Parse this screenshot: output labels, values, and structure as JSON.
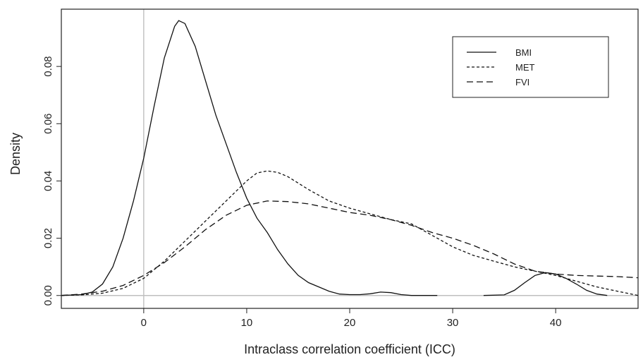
{
  "chart_data": {
    "type": "line",
    "title": "",
    "xlabel": "Intraclass correlation coefficient (ICC)",
    "ylabel": "Density",
    "xlim": [
      -8,
      48
    ],
    "ylim": [
      -0.0045,
      0.1
    ],
    "xticks": [
      0,
      10,
      20,
      30,
      40
    ],
    "yticks": [
      0.0,
      0.02,
      0.04,
      0.06,
      0.08
    ],
    "ytick_labels": [
      "0.00",
      "0.02",
      "0.04",
      "0.06",
      "0.08"
    ],
    "reference_lines": {
      "vertical_x": 0,
      "horizontal_y": 0,
      "color": "#bfbfbf"
    },
    "grid": false,
    "legend": {
      "position": "top-right"
    },
    "series": [
      {
        "name": "BMI",
        "style": "solid",
        "segments": [
          [
            [
              -8,
              0
            ],
            [
              -6,
              0.0003
            ],
            [
              -5,
              0.0012
            ],
            [
              -4,
              0.004
            ],
            [
              -3,
              0.01
            ],
            [
              -2,
              0.02
            ],
            [
              -1,
              0.033
            ],
            [
              0,
              0.048
            ],
            [
              1,
              0.066
            ],
            [
              2,
              0.083
            ],
            [
              3,
              0.094
            ],
            [
              3.4,
              0.096
            ],
            [
              4,
              0.095
            ],
            [
              5,
              0.087
            ],
            [
              6,
              0.075
            ],
            [
              7,
              0.063
            ],
            [
              8,
              0.053
            ],
            [
              9,
              0.043
            ],
            [
              10,
              0.034
            ],
            [
              11,
              0.027
            ],
            [
              12,
              0.022
            ],
            [
              13,
              0.016
            ],
            [
              14,
              0.011
            ],
            [
              15,
              0.007
            ],
            [
              16,
              0.0045
            ],
            [
              17,
              0.003
            ],
            [
              18,
              0.0015
            ],
            [
              19,
              0.0005
            ],
            [
              20,
              0.0003
            ],
            [
              21,
              0.0003
            ],
            [
              22,
              0.0006
            ],
            [
              23,
              0.0012
            ],
            [
              24,
              0.001
            ],
            [
              25,
              0.0003
            ],
            [
              26,
              0
            ],
            [
              28.5,
              0
            ]
          ],
          [
            [
              33,
              0
            ],
            [
              35,
              0.0002
            ],
            [
              36,
              0.0018
            ],
            [
              37,
              0.0045
            ],
            [
              38,
              0.007
            ],
            [
              39,
              0.008
            ],
            [
              40,
              0.0075
            ],
            [
              41,
              0.006
            ],
            [
              42,
              0.004
            ],
            [
              43,
              0.0018
            ],
            [
              44,
              0.0005
            ],
            [
              45,
              0
            ]
          ]
        ]
      },
      {
        "name": "MET",
        "style": "short-dash",
        "segments": [
          [
            [
              -8,
              0
            ],
            [
              -6,
              0.0002
            ],
            [
              -4,
              0.0008
            ],
            [
              -2,
              0.0025
            ],
            [
              0,
              0.006
            ],
            [
              2,
              0.012
            ],
            [
              4,
              0.019
            ],
            [
              6,
              0.026
            ],
            [
              8,
              0.033
            ],
            [
              10,
              0.04
            ],
            [
              11,
              0.0428
            ],
            [
              12,
              0.0435
            ],
            [
              13,
              0.043
            ],
            [
              14,
              0.0415
            ],
            [
              16,
              0.037
            ],
            [
              18,
              0.033
            ],
            [
              20,
              0.0305
            ],
            [
              22,
              0.0285
            ],
            [
              24,
              0.0265
            ],
            [
              26,
              0.025
            ],
            [
              28,
              0.021
            ],
            [
              30,
              0.017
            ],
            [
              32,
              0.014
            ],
            [
              34,
              0.012
            ],
            [
              36,
              0.01
            ],
            [
              38,
              0.0085
            ],
            [
              40,
              0.007
            ],
            [
              42,
              0.005
            ],
            [
              44,
              0.003
            ],
            [
              46,
              0.0015
            ],
            [
              48,
              0.0
            ]
          ]
        ]
      },
      {
        "name": "FVI",
        "style": "long-dash",
        "segments": [
          [
            [
              -8,
              0
            ],
            [
              -6,
              0.0005
            ],
            [
              -4,
              0.0015
            ],
            [
              -2,
              0.0035
            ],
            [
              0,
              0.007
            ],
            [
              2,
              0.0115
            ],
            [
              4,
              0.017
            ],
            [
              6,
              0.023
            ],
            [
              8,
              0.028
            ],
            [
              10,
              0.0315
            ],
            [
              12,
              0.033
            ],
            [
              14,
              0.0328
            ],
            [
              16,
              0.032
            ],
            [
              18,
              0.0305
            ],
            [
              20,
              0.029
            ],
            [
              22,
              0.028
            ],
            [
              24,
              0.0265
            ],
            [
              26,
              0.0245
            ],
            [
              28,
              0.022
            ],
            [
              30,
              0.02
            ],
            [
              32,
              0.0175
            ],
            [
              34,
              0.0145
            ],
            [
              36,
              0.011
            ],
            [
              38,
              0.0085
            ],
            [
              40,
              0.0075
            ],
            [
              42,
              0.007
            ],
            [
              44,
              0.0068
            ],
            [
              46,
              0.0066
            ],
            [
              48,
              0.0062
            ]
          ]
        ]
      }
    ]
  }
}
